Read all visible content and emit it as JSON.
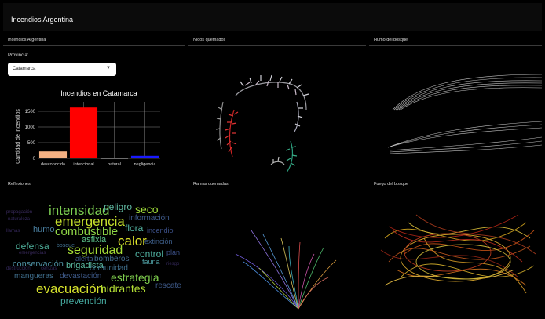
{
  "app": {
    "title": "Incendios Argentina"
  },
  "panels": {
    "p1": {
      "title": "Incendios Argentina"
    },
    "p2": {
      "title": "Nidos quemados"
    },
    "p3": {
      "title": "Humo del bosque"
    },
    "p4": {
      "title": "Reflexiones"
    },
    "p5": {
      "title": "Ramas quemadas"
    },
    "p6": {
      "title": "Fuego del bosque"
    }
  },
  "province": {
    "label": "Provincia:",
    "selected": "Catamarca"
  },
  "chart_data": {
    "type": "bar",
    "title": "Incendios en Catamarca",
    "ylabel": "Cantidad de Incendios",
    "xlabel": "",
    "categories": [
      "desconocida",
      "intencional",
      "natural",
      "negligencia"
    ],
    "values": [
      220,
      1620,
      10,
      80
    ],
    "colors": [
      "#f4b183",
      "#ff0000",
      "#ffffff",
      "#1a1aff"
    ],
    "yticks": [
      0,
      500,
      1000,
      1500
    ],
    "ylim": [
      0,
      1800
    ],
    "grid": true
  },
  "wordcloud": [
    {
      "text": "intensidad",
      "color": "#7ccf52"
    },
    {
      "text": "peligro",
      "color": "#5fb7a0"
    },
    {
      "text": "seco",
      "color": "#9fda3a"
    },
    {
      "text": "emergencia",
      "color": "#c6e02c"
    },
    {
      "text": "información",
      "color": "#3e5a8a"
    },
    {
      "text": "propagación",
      "color": "#3a2b5e"
    },
    {
      "text": "naturaleza",
      "color": "#33285a"
    },
    {
      "text": "humo",
      "color": "#4a7fa0"
    },
    {
      "text": "combustible",
      "color": "#8fd646"
    },
    {
      "text": "flora",
      "color": "#54b6a4"
    },
    {
      "text": "incendio",
      "color": "#3b4f87"
    },
    {
      "text": "llamas",
      "color": "#35285c"
    },
    {
      "text": "asfixia",
      "color": "#5cc48c"
    },
    {
      "text": "calor",
      "color": "#dde32a"
    },
    {
      "text": "extinción",
      "color": "#3d5d88"
    },
    {
      "text": "defensa",
      "color": "#4fb19c"
    },
    {
      "text": "bosque",
      "color": "#3e6d8c"
    },
    {
      "text": "seguridad",
      "color": "#a7de36"
    },
    {
      "text": "control",
      "color": "#4fb0a0"
    },
    {
      "text": "plan",
      "color": "#3b4f87"
    },
    {
      "text": "emergencias",
      "color": "#3a2a5d"
    },
    {
      "text": "alerta",
      "color": "#3e5a8a"
    },
    {
      "text": "bomberos",
      "color": "#436d8f"
    },
    {
      "text": "conservación",
      "color": "#4d8ea0"
    },
    {
      "text": "brigadista",
      "color": "#5ab9a0"
    },
    {
      "text": "fauna",
      "color": "#4e9ea2"
    },
    {
      "text": "riesgo",
      "color": "#35295c"
    },
    {
      "text": "comunidad",
      "color": "#3f6e8c"
    },
    {
      "text": "destrucción",
      "color": "#33285a"
    },
    {
      "text": "cenizas",
      "color": "#34285b"
    },
    {
      "text": "mangueras",
      "color": "#3f6e8c"
    },
    {
      "text": "devastación",
      "color": "#3e5a8a"
    },
    {
      "text": "estrategia",
      "color": "#7fcf4e"
    },
    {
      "text": "evacuación",
      "color": "#d6e22c"
    },
    {
      "text": "hidrantes",
      "color": "#b2dd34"
    },
    {
      "text": "rescate",
      "color": "#3e5a8a"
    },
    {
      "text": "prevención",
      "color": "#45a89e"
    }
  ]
}
